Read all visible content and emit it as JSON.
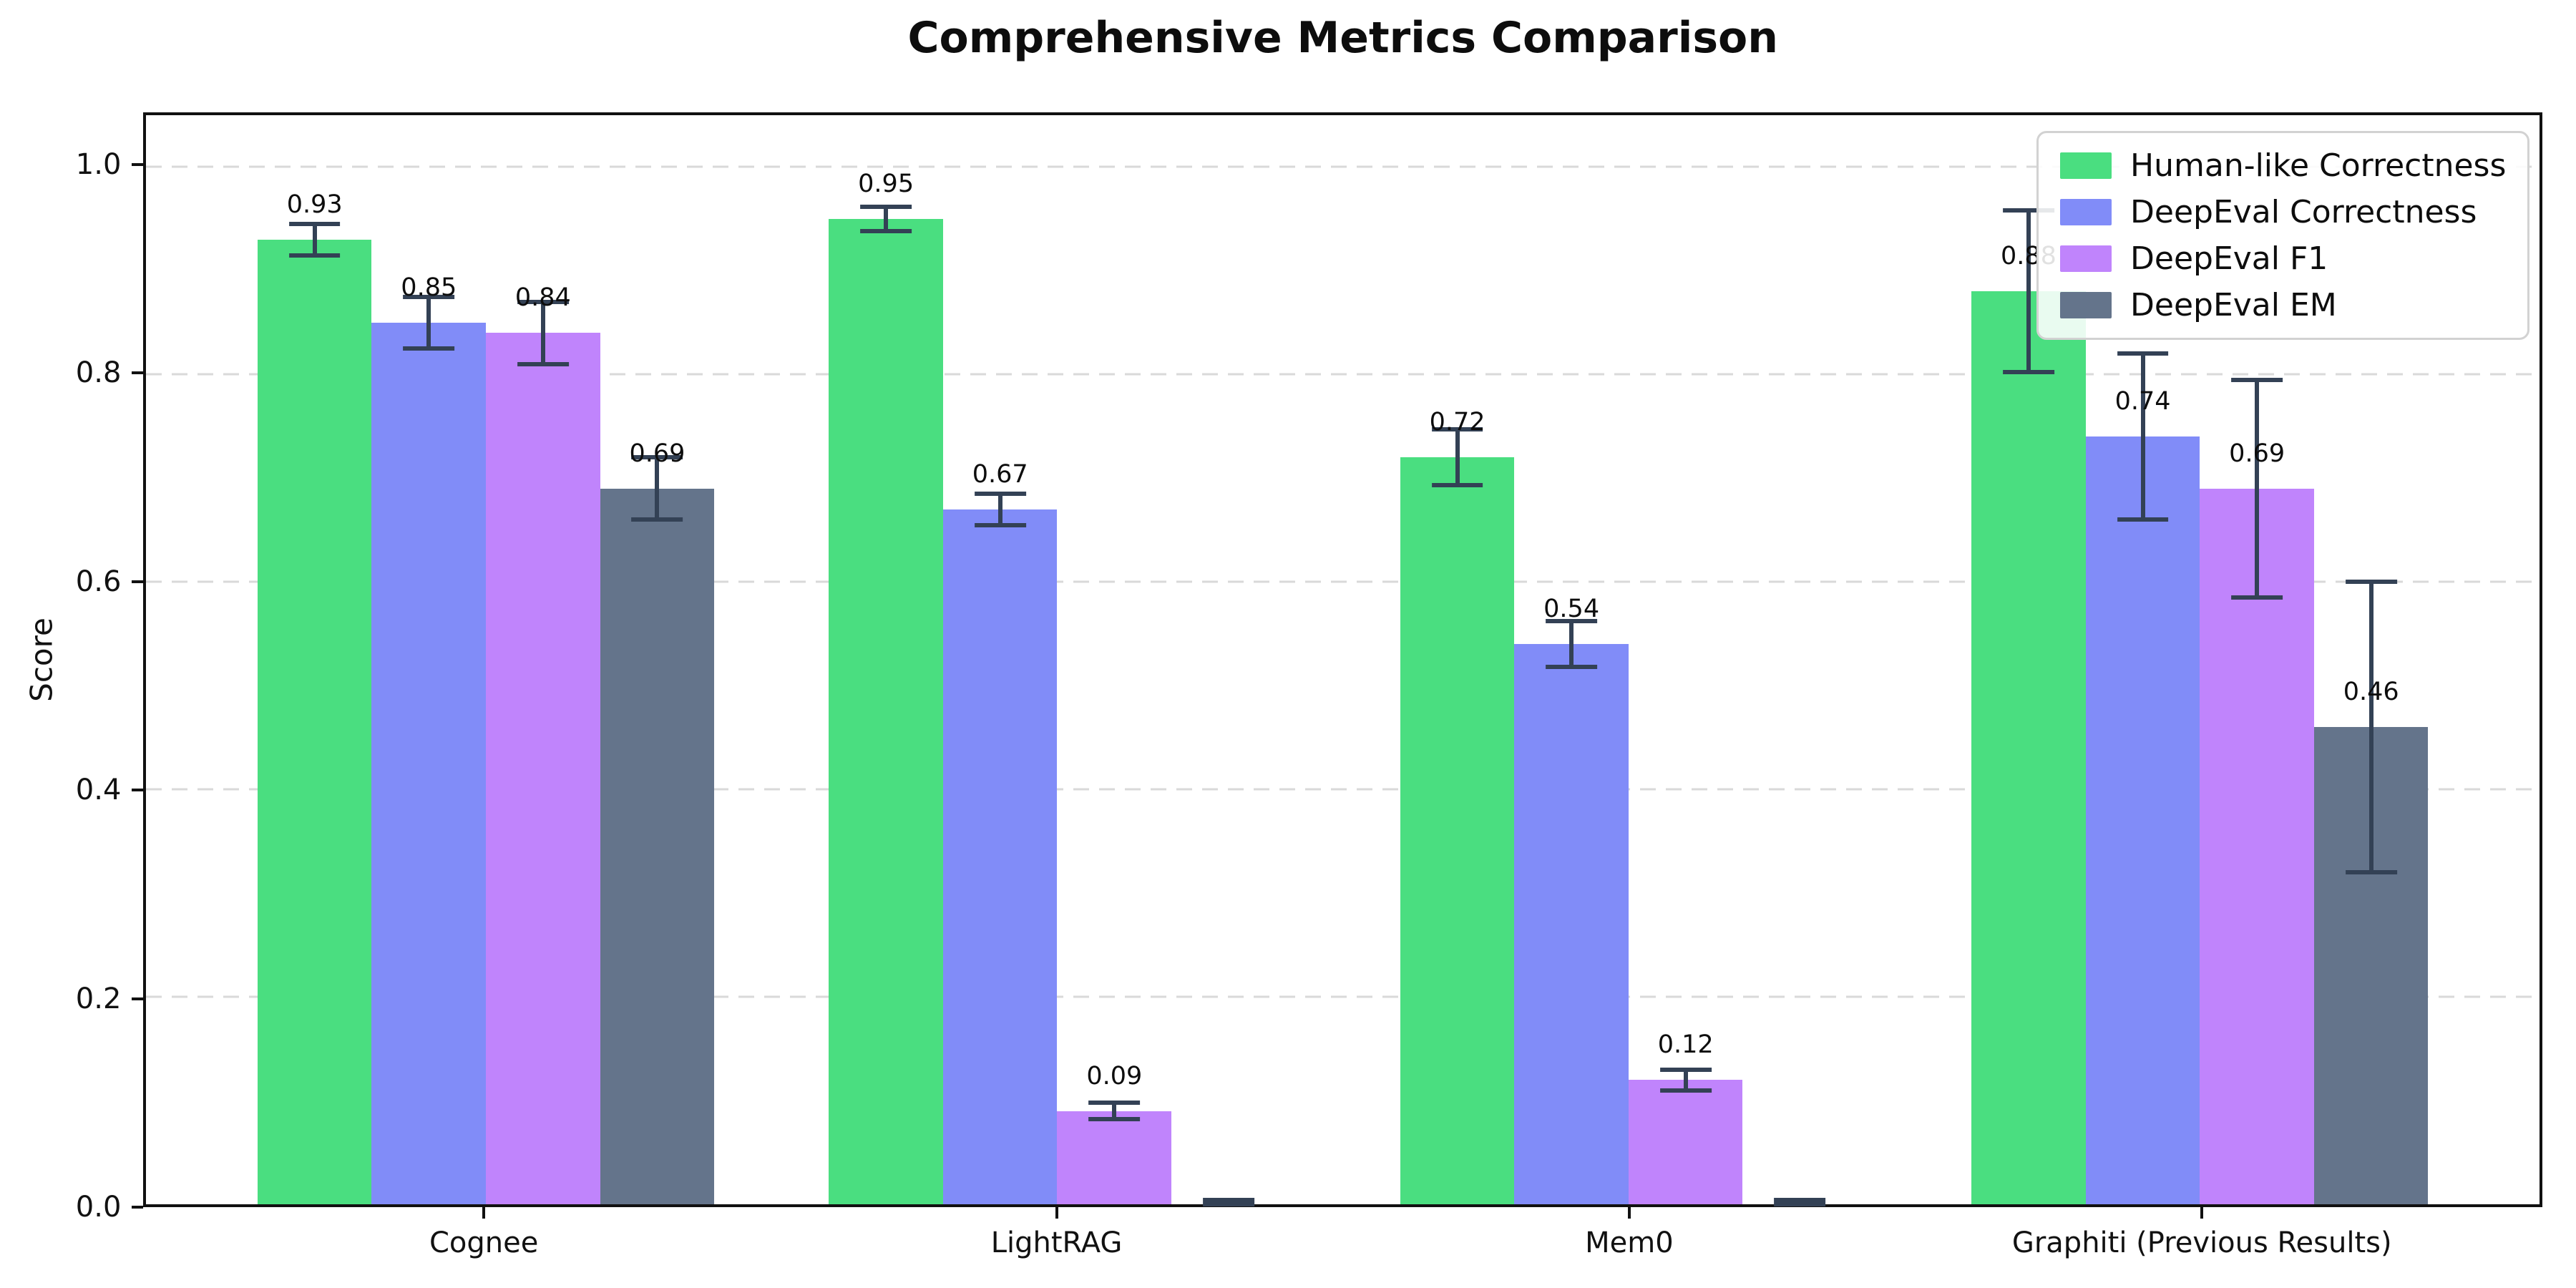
{
  "title": "Comprehensive Metrics Comparison",
  "chart_data": {
    "type": "bar",
    "title": "Comprehensive Metrics Comparison",
    "xlabel": "",
    "ylabel": "Score",
    "categories": [
      "Cognee",
      "LightRAG",
      "Mem0",
      "Graphiti (Previous Results)"
    ],
    "series": [
      {
        "name": "Human-like Correctness",
        "color": "#4ade80",
        "values": [
          0.93,
          0.95,
          0.72,
          0.88
        ],
        "errors": [
          0.015,
          0.012,
          0.027,
          0.078
        ],
        "labels": [
          "0.93",
          "0.95",
          "0.72",
          "0.88"
        ]
      },
      {
        "name": "DeepEval Correctness",
        "color": "#818cf8",
        "values": [
          0.85,
          0.67,
          0.54,
          0.74
        ],
        "errors": [
          0.025,
          0.015,
          0.022,
          0.08
        ],
        "labels": [
          "0.85",
          "0.67",
          "0.54",
          "0.74"
        ]
      },
      {
        "name": "DeepEval F1",
        "color": "#c084fc",
        "values": [
          0.84,
          0.09,
          0.12,
          0.69
        ],
        "errors": [
          0.03,
          0.008,
          0.01,
          0.105
        ],
        "labels": [
          "0.84",
          "0.09",
          "0.12",
          "0.69"
        ]
      },
      {
        "name": "DeepEval EM",
        "color": "#64748b",
        "values": [
          0.69,
          0.0,
          0.0,
          0.46
        ],
        "errors": [
          0.03,
          0.004,
          0.004,
          0.14
        ],
        "labels": [
          "0.69",
          "",
          "",
          "0.46"
        ]
      }
    ],
    "y_ticks": [
      0.0,
      0.2,
      0.4,
      0.6,
      0.8,
      1.0
    ],
    "y_tick_labels": [
      "0.0",
      "0.2",
      "0.4",
      "0.6",
      "0.8",
      "1.0"
    ],
    "ylim": [
      0,
      1.05
    ],
    "grid": "horizontal-dashed",
    "legend_position": "upper right",
    "error_bar_color": "#334155",
    "grid_color": "#d9d9d9",
    "spine_color": "#111111"
  }
}
